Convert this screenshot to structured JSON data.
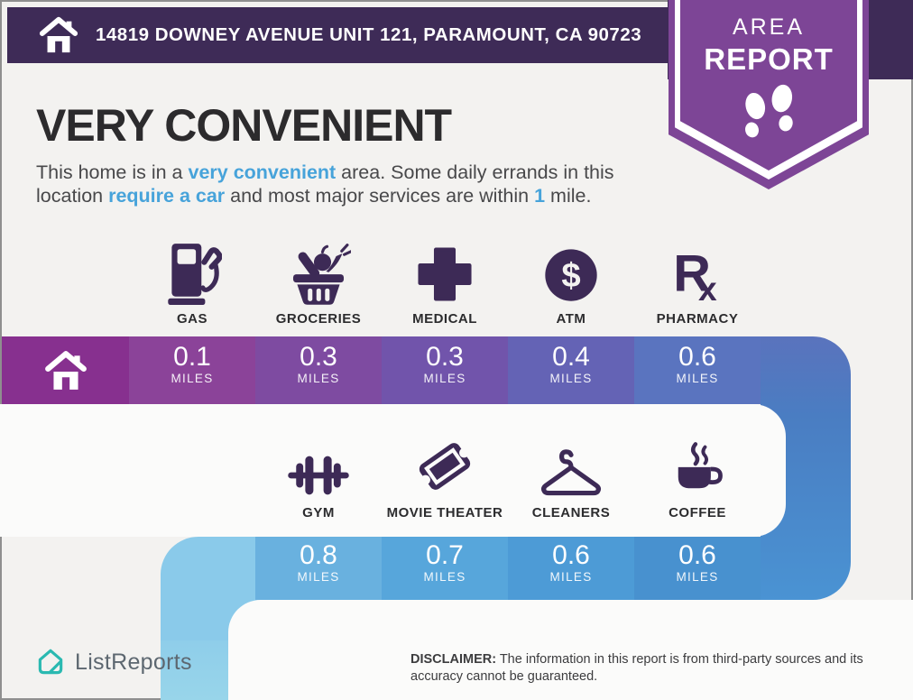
{
  "header": {
    "address": "14819 DOWNEY AVENUE UNIT 121, PARAMOUNT, CA 90723",
    "home_icon": "home-icon"
  },
  "badge": {
    "line1": "AREA",
    "line2": "REPORT",
    "icon": "footprints-icon"
  },
  "title": "VERY CONVENIENT",
  "description": {
    "lines": [
      [
        {
          "t": "This home is in a ",
          "s": "n"
        },
        {
          "t": "very convenient",
          "s": "a"
        },
        {
          "t": " area. Some daily errands in this",
          "s": "n"
        }
      ],
      [
        {
          "t": "location ",
          "s": "n"
        },
        {
          "t": "require a car",
          "s": "a"
        },
        {
          "t": " and most major services are within ",
          "s": "n"
        },
        {
          "t": "1",
          "s": "a"
        },
        {
          "t": " mile.",
          "s": "n"
        }
      ]
    ]
  },
  "amenities_row1": [
    {
      "label": "GAS",
      "icon": "gas-pump-icon",
      "distance": "0.1",
      "unit": "MILES"
    },
    {
      "label": "GROCERIES",
      "icon": "grocery-basket-icon",
      "distance": "0.3",
      "unit": "MILES"
    },
    {
      "label": "MEDICAL",
      "icon": "medical-cross-icon",
      "distance": "0.3",
      "unit": "MILES"
    },
    {
      "label": "ATM",
      "icon": "dollar-circle-icon",
      "distance": "0.4",
      "unit": "MILES"
    },
    {
      "label": "PHARMACY",
      "icon": "rx-icon",
      "distance": "0.6",
      "unit": "MILES"
    }
  ],
  "amenities_row2": [
    {
      "label": "GYM",
      "icon": "dumbbell-icon",
      "distance": "0.8",
      "unit": "MILES"
    },
    {
      "label": "MOVIE THEATER",
      "icon": "movie-ticket-icon",
      "distance": "0.7",
      "unit": "MILES"
    },
    {
      "label": "CLEANERS",
      "icon": "hanger-icon",
      "distance": "0.6",
      "unit": "MILES"
    },
    {
      "label": "COFFEE",
      "icon": "coffee-cup-icon",
      "distance": "0.6",
      "unit": "MILES"
    }
  ],
  "footer": {
    "brand": "ListReports",
    "logo_icon": "listreports-logo-icon",
    "disclaimer_label": "DISCLAIMER:",
    "disclaimer_text": " The information in this report is from third-party sources and its accuracy cannot be guaranteed."
  },
  "colors": {
    "header_purple": "#3e2b57",
    "badge_purple": "#7d4596",
    "icon_purple": "#3d2a56",
    "accent_blue": "#47a3da",
    "bar1_cells": [
      "#87308f",
      "#8b4399",
      "#7e4ba1",
      "#7154ab",
      "#6463b5",
      "#5a74bf"
    ],
    "bar2_cells": [
      "#8acaea",
      "#69b1df",
      "#57a6db",
      "#4d9bd6",
      "#4891cf"
    ],
    "turn_gradient": [
      "#5a73bd",
      "#4a93d3"
    ],
    "logo_teal": "#2ab9b1"
  }
}
